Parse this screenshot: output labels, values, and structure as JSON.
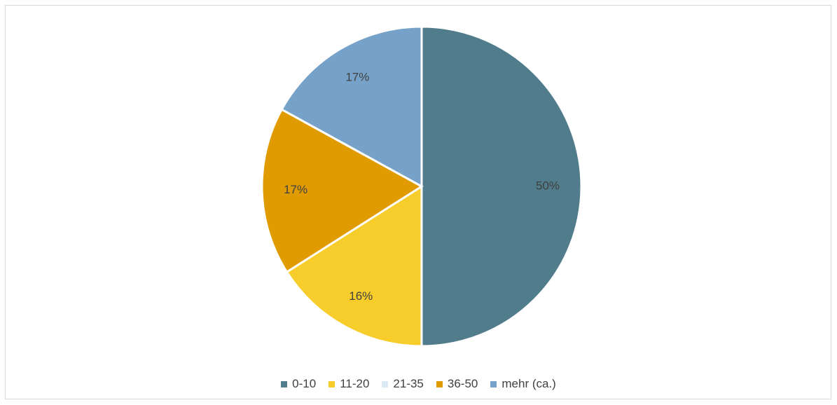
{
  "chart_data": {
    "type": "pie",
    "title": "",
    "categories": [
      "0-10",
      "11-20",
      "21-35",
      "36-50",
      "mehr (ca.)"
    ],
    "values": [
      50,
      16,
      0,
      17,
      17
    ],
    "data_labels": [
      "50%",
      "16%",
      "",
      "17%",
      "17%"
    ],
    "colors": [
      "#517c8c",
      "#f7cd2b",
      "#dbe9f2",
      "#e09b00",
      "#76a2c9"
    ],
    "start_angle_deg": 0,
    "direction": "clockwise",
    "legend_position": "bottom"
  }
}
